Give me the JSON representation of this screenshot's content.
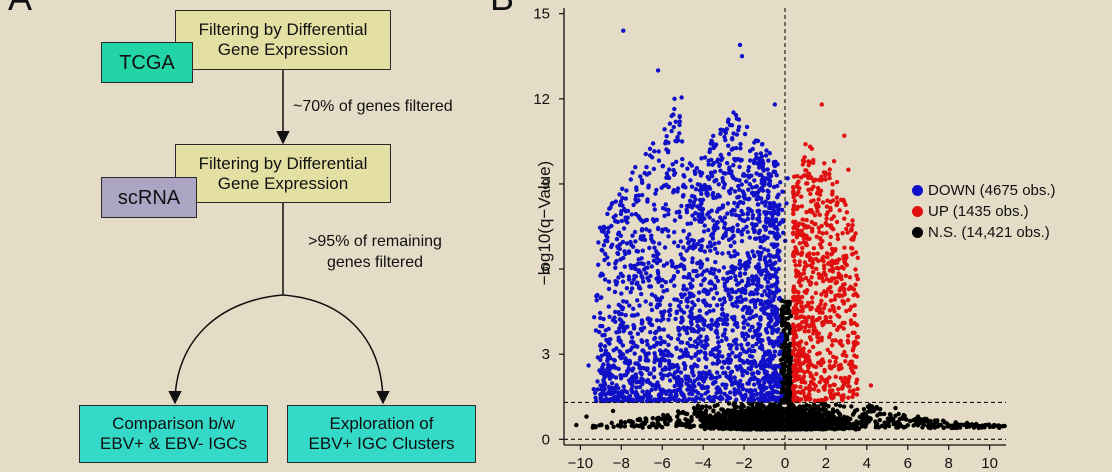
{
  "panel_a": {
    "letter": "A",
    "filter1": [
      "Filtering by Differential",
      "Gene Expression"
    ],
    "source1": "TCGA",
    "arrow1_note": "~70% of genes filtered",
    "filter2": [
      "Filtering by Differential",
      "Gene Expression"
    ],
    "source2": "scRNA",
    "arrow2_note": [
      ">95% of remaining",
      "genes filtered"
    ],
    "outcome1": [
      "Comparison b/w",
      "EBV+ & EBV- IGCs"
    ],
    "outcome2": [
      "Exploration of",
      "EBV+ IGC Clusters"
    ]
  },
  "panel_b": {
    "letter": "B"
  },
  "colors": {
    "down": "#1010c8",
    "up": "#e01010",
    "ns": "#000000"
  },
  "chart_data": {
    "type": "scatter",
    "title": "",
    "xlabel": "",
    "ylabel": "−log10(q−Value)",
    "xlim": [
      -10.8,
      10.8
    ],
    "ylim": [
      -0.2,
      15.2
    ],
    "xticks": [
      "−10",
      "−8",
      "−6",
      "−4",
      "−2",
      "0",
      "2",
      "4",
      "6",
      "8",
      "10"
    ],
    "xtick_values": [
      -10,
      -8,
      -6,
      -4,
      -2,
      0,
      2,
      4,
      6,
      8,
      10
    ],
    "yticks": [
      "0",
      "3",
      "6",
      "9",
      "12",
      "15"
    ],
    "ytick_values": [
      0,
      3,
      6,
      9,
      12,
      15
    ],
    "threshold_y": 1.3,
    "threshold_x": 0,
    "grid": false,
    "legend_position": "right",
    "series": [
      {
        "name": "DOWN (4675 obs.)",
        "color_key": "down",
        "count": 4675,
        "highlight_points": [
          [
            -7.9,
            14.4
          ],
          [
            -9.6,
            2.6
          ],
          [
            -8.6,
            5.3
          ],
          [
            -2.2,
            13.9
          ],
          [
            -2.1,
            13.5
          ],
          [
            -6.2,
            13.0
          ],
          [
            -5.4,
            12.0
          ],
          [
            -9.2,
            4.9
          ],
          [
            -7.2,
            4.4
          ],
          [
            -0.5,
            11.8
          ]
        ]
      },
      {
        "name": "UP (1435 obs.)",
        "color_key": "up",
        "count": 1435,
        "highlight_points": [
          [
            1.8,
            11.8
          ],
          [
            2.9,
            10.7
          ],
          [
            1.0,
            10.4
          ],
          [
            2.4,
            9.8
          ],
          [
            3.1,
            9.5
          ],
          [
            1.6,
            8.7
          ],
          [
            2.6,
            1.6
          ],
          [
            4.2,
            1.9
          ],
          [
            0.7,
            7.6
          ],
          [
            3.3,
            1.5
          ]
        ]
      },
      {
        "name": "N.S. (14,421 obs.)",
        "color_key": "ns",
        "count": 14421,
        "highlight_points": [
          [
            -9.7,
            0.8
          ],
          [
            -8.4,
            1.0
          ],
          [
            -10.2,
            0.5
          ],
          [
            9.8,
            0.5
          ],
          [
            9.0,
            0.5
          ],
          [
            7.8,
            0.6
          ],
          [
            6.5,
            0.8
          ],
          [
            5.4,
            1.1
          ],
          [
            0.1,
            3.6
          ],
          [
            -0.2,
            2.8
          ]
        ]
      }
    ]
  }
}
